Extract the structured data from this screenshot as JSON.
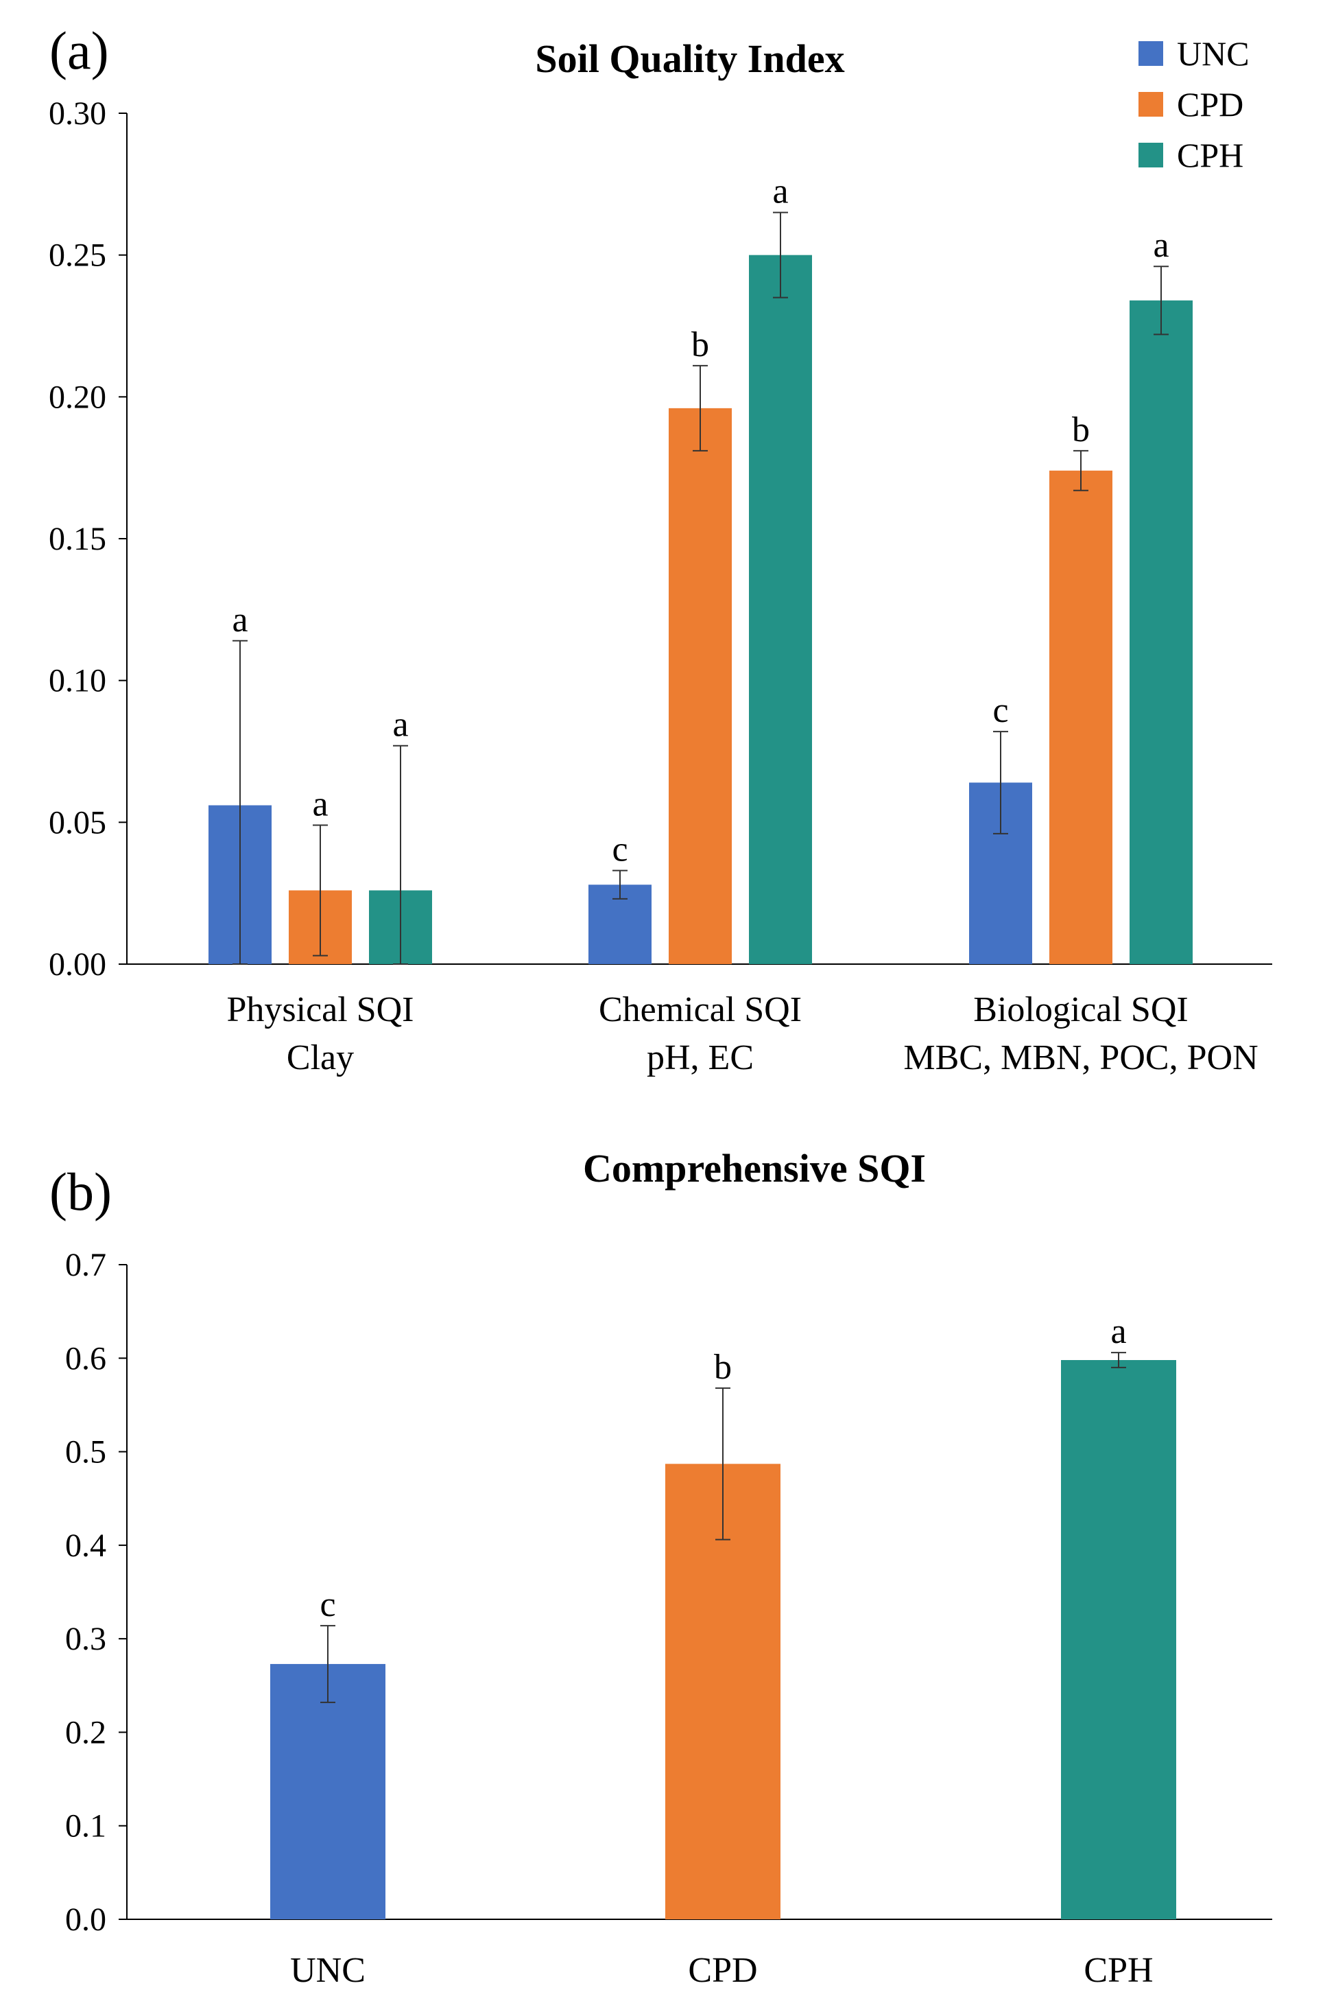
{
  "panels": [
    {
      "panel_label": "(a)",
      "chart_data": {
        "type": "bar",
        "title": "Soil Quality Index",
        "categories": [
          [
            "Physical SQI",
            "Clay"
          ],
          [
            "Chemical SQI",
            "pH, EC"
          ],
          [
            "Biological SQI",
            "MBC, MBN, POC, PON"
          ]
        ],
        "series": [
          {
            "name": "UNC",
            "color": "#4472C4",
            "values": [
              0.056,
              0.028,
              0.064
            ],
            "errors": [
              0.058,
              0.005,
              0.018
            ],
            "letters": [
              "a",
              "c",
              "c"
            ]
          },
          {
            "name": "CPD",
            "color": "#ED7D31",
            "values": [
              0.026,
              0.196,
              0.174
            ],
            "errors": [
              0.023,
              0.015,
              0.007
            ],
            "letters": [
              "a",
              "b",
              "b"
            ]
          },
          {
            "name": "CPH",
            "color": "#239287",
            "values": [
              0.026,
              0.25,
              0.234
            ],
            "errors": [
              0.051,
              0.015,
              0.012
            ],
            "letters": [
              "a",
              "a",
              "a"
            ]
          }
        ],
        "ylim": [
          0,
          0.3
        ],
        "yticks": [
          "0.00",
          "0.05",
          "0.10",
          "0.15",
          "0.20",
          "0.25",
          "0.30"
        ],
        "legend": "top-right",
        "grid": false
      }
    },
    {
      "panel_label": "(b)",
      "chart_data": {
        "type": "bar",
        "title": "Comprehensive SQI",
        "categories": [
          [
            "UNC"
          ],
          [
            "CPD"
          ],
          [
            "CPH"
          ]
        ],
        "series": [
          {
            "colors": [
              "#4472C4",
              "#ED7D31",
              "#239287"
            ],
            "values": [
              0.273,
              0.487,
              0.598
            ],
            "errors": [
              0.041,
              0.081,
              0.008
            ],
            "letters": [
              "c",
              "b",
              "a"
            ]
          }
        ],
        "ylim": [
          0,
          0.7
        ],
        "yticks": [
          "0.0",
          "0.1",
          "0.2",
          "0.3",
          "0.4",
          "0.5",
          "0.6",
          "0.7"
        ],
        "grid": false
      }
    }
  ]
}
